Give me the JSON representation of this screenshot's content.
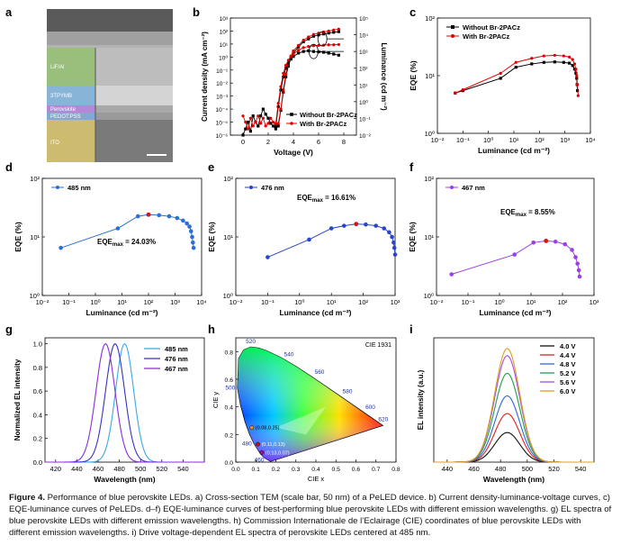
{
  "figure": {
    "panel_letters": [
      "a",
      "b",
      "c",
      "d",
      "e",
      "f",
      "g",
      "h",
      "i"
    ],
    "tem": {
      "layers": [
        "LiF/Al",
        "3TPYMB",
        "Perovskite",
        "PEDOT:PSS",
        "ITO"
      ],
      "scale_bar": "scale bar, 50 nm"
    }
  },
  "caption": {
    "label": "Figure 4.",
    "text": "Performance of blue perovskite LEDs. a) Cross-section TEM (scale bar, 50 nm) of a PeLED device. b) Current density-luminance-voltage curves, c) EQE-luminance curves of PeLEDs. d–f) EQE-luminance curves of best-performing blue perovskite LEDs with different emission wavelengths. g) EL spectra of blue perovskite LEDs with different emission wavelengths. h) Commission Internationale de l’Eclairage (CIE) coordinates of blue perovskite LEDs with different emission wavelengths. i) Drive voltage-dependent EL spectra of perovskite LEDs centered at 485 nm."
  },
  "chart_data": [
    {
      "id": "b",
      "type": "line",
      "title": "",
      "xlabel": "Voltage (V)",
      "ylabel": "Current density (mA cm⁻²)",
      "ylabel2": "Luminance (cd m⁻²)",
      "xlim": [
        -1,
        9
      ],
      "ylim_log": [
        -6,
        3
      ],
      "y2lim_log": [
        -2,
        5
      ],
      "xticks": [
        0,
        2,
        4,
        6,
        8
      ],
      "yticks_log": [
        -6,
        -5,
        -4,
        -3,
        -2,
        -1,
        0,
        1,
        2,
        3
      ],
      "y2ticks_log": [
        -2,
        -1,
        0,
        1,
        2,
        3,
        4,
        5
      ],
      "series": [
        {
          "name": "Without Br-2PACz",
          "color": "#000000",
          "marker": "square",
          "axis": "left",
          "x": [
            0,
            0.2,
            0.4,
            0.6,
            0.8,
            1.0,
            1.2,
            1.4,
            1.6,
            1.8,
            2.0,
            2.2,
            2.4,
            2.6,
            2.8,
            3.0,
            3.2,
            3.4,
            3.6,
            3.8,
            4.0,
            4.4,
            4.8,
            5.2,
            5.6,
            6.0,
            6.4,
            6.8,
            7.2,
            7.6
          ],
          "y": [
            1e-06,
            3e-06,
            1e-05,
            2e-06,
            3e-05,
            1e-05,
            5e-06,
            3e-05,
            0.0001,
            4e-05,
            2e-05,
            8e-06,
            5e-06,
            3e-06,
            5e-06,
            8e-05,
            0.002,
            0.03,
            0.2,
            0.8,
            2,
            6,
            15,
            25,
            40,
            50,
            60,
            70,
            80,
            90
          ]
        },
        {
          "name": "With Br-2PACz",
          "color": "#e00000",
          "marker": "circle",
          "axis": "left",
          "x": [
            0,
            0.2,
            0.4,
            0.6,
            0.8,
            1.0,
            1.2,
            1.4,
            1.6,
            1.8,
            2.0,
            2.2,
            2.4,
            2.6,
            2.8,
            3.0,
            3.2,
            3.4,
            3.6,
            3.8,
            4.0,
            4.4,
            4.8,
            5.2,
            5.6,
            6.0,
            6.4,
            6.8,
            7.2,
            7.6
          ],
          "y": [
            3e-05,
            1e-05,
            3e-06,
            2e-05,
            5e-06,
            1e-05,
            3e-05,
            8e-06,
            2e-05,
            5e-06,
            8e-06,
            2e-05,
            1e-05,
            5e-06,
            8e-06,
            0.0001,
            0.003,
            0.05,
            0.3,
            1.2,
            3,
            8,
            20,
            35,
            55,
            70,
            85,
            100,
            120,
            140
          ]
        },
        {
          "name": "Without Br-2PACz L",
          "color": "#000000",
          "marker": "square",
          "axis": "right",
          "x": [
            2.6,
            2.8,
            3.0,
            3.2,
            3.4,
            3.6,
            3.8,
            4.0,
            4.4,
            4.8,
            5.2,
            5.6,
            6.0,
            6.4,
            6.8,
            7.2,
            7.6
          ],
          "y": [
            0.03,
            0.5,
            5,
            30,
            100,
            200,
            350,
            500,
            800,
            1000,
            1100,
            1000,
            950,
            900,
            800,
            700,
            600
          ]
        },
        {
          "name": "With Br-2PACz L",
          "color": "#e00000",
          "marker": "circle",
          "axis": "right",
          "x": [
            2.6,
            2.8,
            3.0,
            3.2,
            3.4,
            3.6,
            3.8,
            4.0,
            4.4,
            4.8,
            5.2,
            5.6,
            6.0,
            6.4,
            6.8,
            7.2,
            7.6
          ],
          "y": [
            0.05,
            0.8,
            8,
            50,
            150,
            300,
            500,
            700,
            1200,
            1700,
            2000,
            2200,
            2300,
            2400,
            2500,
            2500,
            2600
          ]
        }
      ],
      "legend": [
        "Without Br-2PACz",
        "With Br-2PACz"
      ]
    },
    {
      "id": "c",
      "type": "line",
      "xlabel": "Luminance (cd m⁻²)",
      "ylabel": "EQE (%)",
      "xlim_log": [
        -2,
        4
      ],
      "ylim_log": [
        0,
        2
      ],
      "xticks_log": [
        -2,
        -1,
        0,
        1,
        2,
        3,
        4
      ],
      "yticks_log": [
        0,
        1,
        2
      ],
      "series": [
        {
          "name": "Without Br-2PACz",
          "color": "#000000",
          "marker": "square",
          "x": [
            0.05,
            0.1,
            3,
            12,
            50,
            150,
            400,
            900,
            1500,
            2000,
            2400,
            2700,
            2900,
            3000,
            3100
          ],
          "y": [
            5,
            5.5,
            9,
            14,
            16,
            17,
            17.3,
            17,
            16.5,
            15,
            13,
            11,
            9,
            7,
            5.5
          ]
        },
        {
          "name": "With Br-2PACz",
          "color": "#e00000",
          "marker": "circle",
          "x": [
            0.05,
            0.1,
            3,
            12,
            50,
            150,
            400,
            900,
            1500,
            2000,
            2400,
            2700,
            2900,
            3100,
            3300
          ],
          "y": [
            5,
            5.7,
            11,
            17,
            20,
            22,
            22.6,
            22,
            21,
            19,
            16,
            13,
            10,
            7,
            4.5
          ]
        }
      ],
      "legend": [
        "Without Br-2PACz",
        "With Br-2PACz"
      ]
    },
    {
      "id": "d",
      "type": "line",
      "xlabel": "Luminance (cd m⁻²)",
      "ylabel": "EQE (%)",
      "xlim_log": [
        -2,
        4
      ],
      "ylim_log": [
        0,
        2
      ],
      "xticks_log": [
        -2,
        -1,
        0,
        1,
        2,
        3,
        4
      ],
      "yticks_log": [
        0,
        1,
        2
      ],
      "legend": [
        "485 nm"
      ],
      "annotation": "EQEmax = 24.03%",
      "series": [
        {
          "name": "485 nm",
          "color": "#2a6ed6",
          "x": [
            0.05,
            7,
            40,
            100,
            250,
            600,
            1200,
            2000,
            2800,
            3500,
            4000,
            4400,
            4700,
            5000
          ],
          "y": [
            6.5,
            14,
            22.5,
            24.03,
            23.5,
            22.5,
            21,
            19,
            17,
            15,
            12.5,
            10,
            8,
            6.5
          ]
        }
      ]
    },
    {
      "id": "e",
      "type": "line",
      "xlabel": "Luminance (cd m⁻²)",
      "ylabel": "EQE (%)",
      "xlim_log": [
        -2,
        3
      ],
      "ylim_log": [
        0,
        2
      ],
      "xticks_log": [
        -2,
        -1,
        0,
        1,
        2,
        3
      ],
      "yticks_log": [
        0,
        1,
        2
      ],
      "legend": [
        "476 nm"
      ],
      "annotation": "EQEmax = 16.61%",
      "series": [
        {
          "name": "476 nm",
          "color": "#2a46c8",
          "x": [
            0.1,
            2,
            10,
            25,
            60,
            120,
            250,
            450,
            650,
            800,
            900,
            950,
            1000
          ],
          "y": [
            4.5,
            9,
            14,
            15.5,
            16.61,
            16.3,
            15.5,
            14,
            12,
            10,
            8,
            6.5,
            5
          ]
        }
      ]
    },
    {
      "id": "f",
      "type": "line",
      "xlabel": "Luminance (cd m⁻²)",
      "ylabel": "EQE (%)",
      "xlim_log": [
        -2,
        3
      ],
      "ylim_log": [
        0,
        2
      ],
      "xticks_log": [
        -2,
        -1,
        0,
        1,
        2,
        3
      ],
      "yticks_log": [
        0,
        1,
        2
      ],
      "legend": [
        "467 nm"
      ],
      "annotation": "EQEmax = 8.55%",
      "series": [
        {
          "name": "467 nm",
          "color": "#9b3fe6",
          "x": [
            0.03,
            3,
            12,
            30,
            60,
            120,
            200,
            260,
            300,
            330,
            350
          ],
          "y": [
            2.3,
            5,
            8,
            8.55,
            8.3,
            7.5,
            6,
            4.5,
            3.5,
            2.7,
            2.1
          ]
        }
      ]
    },
    {
      "id": "g",
      "type": "line",
      "xlabel": "Wavelength (nm)",
      "ylabel": "Normalized EL intensity",
      "xlim": [
        410,
        560
      ],
      "ylim": [
        0,
        1.05
      ],
      "xticks": [
        420,
        440,
        460,
        480,
        500,
        520,
        540
      ],
      "yticks": [
        0.0,
        0.2,
        0.4,
        0.6,
        0.8,
        1.0
      ],
      "series": [
        {
          "name": "485 nm",
          "color": "#39a8e8",
          "peak": 485,
          "fwhm": 20
        },
        {
          "name": "476 nm",
          "color": "#3a2fc4",
          "peak": 476,
          "fwhm": 21
        },
        {
          "name": "467 nm",
          "color": "#8a2be2",
          "peak": 467,
          "fwhm": 21
        }
      ]
    },
    {
      "id": "h",
      "type": "scatter",
      "title": "CIE 1931",
      "xlabel": "CIE x",
      "ylabel": "CIE y",
      "xlim": [
        0,
        0.8
      ],
      "ylim": [
        0,
        0.9
      ],
      "xticks": [
        0.0,
        0.1,
        0.2,
        0.3,
        0.4,
        0.5,
        0.6,
        0.7,
        0.8
      ],
      "yticks": [
        0.0,
        0.2,
        0.4,
        0.6,
        0.8
      ],
      "wavelength_labels": [
        "460",
        "480",
        "500",
        "520",
        "540",
        "560",
        "580",
        "600",
        "620"
      ],
      "points": [
        {
          "label": "(0.08,0.25)",
          "x": 0.08,
          "y": 0.25
        },
        {
          "label": "(0.11,0.13)",
          "x": 0.11,
          "y": 0.13
        },
        {
          "label": "(0.13,0.07)",
          "x": 0.13,
          "y": 0.07
        }
      ]
    },
    {
      "id": "i",
      "type": "line",
      "xlabel": "Wavelength (nm)",
      "ylabel": "EL intensity (a.u.)",
      "xlim": [
        430,
        550
      ],
      "ylim": [
        0,
        1.05
      ],
      "xticks": [
        440,
        460,
        480,
        500,
        520,
        540
      ],
      "series": [
        {
          "name": "4.0 V",
          "color": "#111111",
          "peak": 485,
          "amp": 0.25
        },
        {
          "name": "4.4 V",
          "color": "#e02020",
          "peak": 485,
          "amp": 0.41
        },
        {
          "name": "4.8 V",
          "color": "#2f66d8",
          "peak": 485,
          "amp": 0.56
        },
        {
          "name": "5.2 V",
          "color": "#1e9e4a",
          "peak": 485,
          "amp": 0.75
        },
        {
          "name": "5.6 V",
          "color": "#b049e0",
          "peak": 485,
          "amp": 0.9
        },
        {
          "name": "6.0 V",
          "color": "#d9a019",
          "peak": 485,
          "amp": 0.96
        }
      ]
    }
  ]
}
